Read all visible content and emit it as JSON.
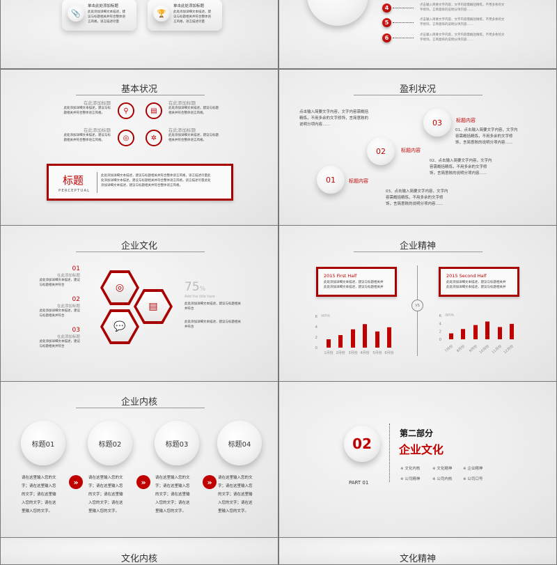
{
  "colors": {
    "accent": "#c00000",
    "text": "#333333",
    "background": "#eeeeee"
  },
  "slide_top_left": {
    "cards": [
      {
        "icon": "paperclip-icon",
        "title": "单击此处添加标题",
        "text": [
          "此处添加详细文本描述，建",
          "议与标题相关并符合整体语",
          "言风格，语言描述尽量"
        ]
      },
      {
        "icon": "trophy-icon",
        "title": "单击此处添加标题",
        "text": [
          "此处添加详细文本描述，建",
          "议与标题相关并符合整体语",
          "言风格，语言描述尽量"
        ]
      }
    ]
  },
  "slide_top_right": {
    "items": [
      {
        "num": "4",
        "text": [
          "点击输入简要文字内容，文字内容需概括精炼，不用多余的文",
          "字修饰，言简意赅的说明分项内容……"
        ]
      },
      {
        "num": "5",
        "text": [
          "点击输入简要文字内容，文字内容需概括精炼，不用多余的文",
          "字修饰，言简意赅的说明分项内容……"
        ]
      },
      {
        "num": "6",
        "text": [
          "点击输入简要文字内容，文字内容需概括精炼，不用多余的文",
          "字修饰，言简意赅的说明分项内容……"
        ]
      }
    ]
  },
  "slide_basic": {
    "title": "基本状况",
    "items": [
      {
        "title": "在此添加标题",
        "text": [
          "此处添加详细文本描述，建议与标",
          "题相关并符合整体语言风格。"
        ],
        "icon": "search-icon"
      },
      {
        "title": "在此添加标题",
        "text": [
          "此处添加详细文本描述，建议与标题",
          "相关并符合整体语言风格。"
        ],
        "icon": "document-icon"
      },
      {
        "title": "在此添加标题",
        "text": [
          "此处添加详细文本描述，建议与标",
          "题相关并符合整体语言风格。"
        ],
        "icon": "target-icon"
      },
      {
        "title": "在此添加标题",
        "text": [
          "此处添加详细文本描述，建议与标题",
          "相关并符合整体语言风格。"
        ],
        "icon": "gear-icon"
      }
    ],
    "box": {
      "heading": "标题",
      "sub": "PERCEPTUAL",
      "text": [
        "此处添加详细文本描述，建议与标题相关并符合整体语言风格，语言描述尽量此",
        "处添加详细文本描述，建议与标题相关并符合整体语言风格，语言描述尽量此处",
        "添加详细文本描述，建议与标题相关并符合整体语言风格。"
      ]
    }
  },
  "slide_profit": {
    "title": "盈利状况",
    "intro": [
      "点击输入简要文字内容，文字内容需概括",
      "精炼，不用多余的文字修饰，言简意赅的",
      "说明分项内容……"
    ],
    "steps": [
      {
        "num": "01",
        "label": "标题内容"
      },
      {
        "num": "02",
        "label": "标题内容"
      },
      {
        "num": "03",
        "label": "标题内容"
      }
    ],
    "notes": [
      [
        "01、点击输入简要文字内容，文字内",
        "容需概括精炼，不用多余的文字修",
        "饰，言简意赅的说明分项内容……"
      ],
      [
        "02、点击输入简要文字内容，文字内",
        "容需概括精炼，不用多余的文字修",
        "饰，言简意赅的说明分项内容……"
      ],
      [
        "03、点击输入简要文字内容，文字内",
        "容需概括精炼，不用多余的文字修",
        "饰，言简意赅的说明分项内容……"
      ]
    ]
  },
  "slide_culture": {
    "title": "企业文化",
    "items": [
      {
        "num": "01",
        "title": "在此添加标题",
        "text": [
          "此处添加详细文本描述，建议",
          "与标题相关并符合"
        ]
      },
      {
        "num": "02",
        "title": "在此添加标题",
        "text": [
          "此处添加详细文本描述，建议",
          "与标题相关并符合"
        ]
      },
      {
        "num": "03",
        "title": "在此添加标题",
        "text": [
          "此处添加详细文本描述，建议",
          "与标题相关并符合"
        ]
      }
    ],
    "percent": "75",
    "percent_sign": "%",
    "percent_caption": "Add the title here",
    "right_texts": [
      [
        "此处添加详细文本描述，建议与标题相关",
        "并符合"
      ],
      [
        "此处添加详细文本描述，建议与标题相关",
        "并符合"
      ]
    ]
  },
  "slide_spirit": {
    "title": "企业精神",
    "vs": "VS",
    "boxes": [
      {
        "title": "2015 First Half",
        "text": [
          "此处添加详细文本描述，建议与标题相关并",
          "此处添加详细文本描述，建议与标题相关并"
        ]
      },
      {
        "title": "2015 Second Half",
        "text": [
          "此处添加详细文本描述，建议与标题相关并",
          "此处添加详细文本描述，建议与标题相关并"
        ]
      }
    ]
  },
  "chart_data": [
    {
      "type": "bar",
      "unit": "(百万元)",
      "ylim": [
        0,
        6
      ],
      "yticks": [
        "0",
        "2",
        "4",
        "6"
      ],
      "categories": [
        "1月份",
        "2月份",
        "3月份",
        "4月份",
        "5月份",
        "6月份"
      ],
      "values": [
        1.6,
        2.4,
        3.5,
        4.5,
        3.1,
        3.9
      ],
      "color": "#c00000"
    },
    {
      "type": "bar",
      "unit": "(百万元)",
      "ylim": [
        0,
        6
      ],
      "yticks": [
        "0",
        "2",
        "4",
        "6"
      ],
      "categories": [
        "7月份",
        "8月份",
        "9月份",
        "10月份",
        "11月份",
        "12月份"
      ],
      "values": [
        1.5,
        2.6,
        3.6,
        4.5,
        3.1,
        3.9
      ],
      "color": "#c00000"
    }
  ],
  "slide_core": {
    "title": "企业内核",
    "items": [
      {
        "title": "标题01",
        "text": [
          "请在这里输入您的文",
          "字；请在这里输入您",
          "的文字；请在这里输",
          "入您的文字；请在这",
          "里输入您的文字。"
        ]
      },
      {
        "title": "标题02",
        "text": [
          "请在这里输入您的文",
          "字；请在这里输入您",
          "的文字；请在这里输",
          "入您的文字；请在这",
          "里输入您的文字。"
        ]
      },
      {
        "title": "标题03",
        "text": [
          "请在这里输入您的文",
          "字；请在这里输入您",
          "的文字；请在这里输",
          "入您的文字；请在这",
          "里输入您的文字。"
        ]
      },
      {
        "title": "标题04",
        "text": [
          "请在这里输入您的文",
          "字；请在这里输入您",
          "的文字；请在这里输",
          "入您的文字；请在这",
          "里输入您的文字。"
        ]
      }
    ]
  },
  "slide_part": {
    "num": "02",
    "part": "PART 01",
    "heading": "第二部分",
    "title": "企业文化",
    "items": [
      "※ 文化内核",
      "※ 文化精神",
      "※ 企业精神",
      "※ 公司精神",
      "※ 公司内核",
      "※ 公司口号"
    ]
  },
  "slide_bottom_left": {
    "title": "文化内核"
  },
  "slide_bottom_right": {
    "title": "文化精神"
  }
}
